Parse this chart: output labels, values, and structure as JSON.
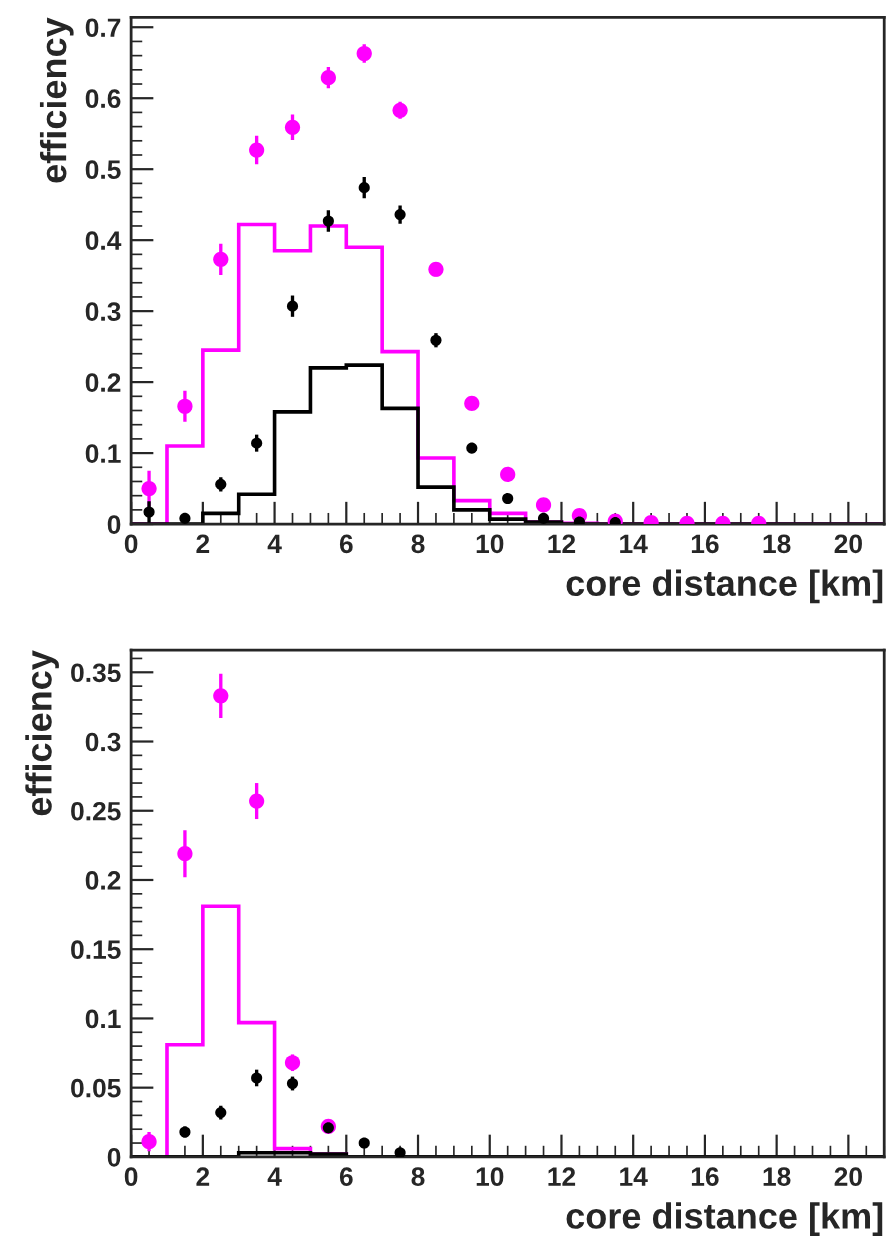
{
  "chart_data": [
    {
      "type": "histogram",
      "xlabel": "core distance [km]",
      "ylabel": "efficiency",
      "xlim": [
        0,
        21
      ],
      "ylim": [
        0,
        0.714
      ],
      "xticks": [
        0,
        2,
        4,
        6,
        8,
        10,
        12,
        14,
        16,
        18,
        20
      ],
      "yticks": [
        0,
        0.1,
        0.2,
        0.3,
        0.4,
        0.5,
        0.6,
        0.7
      ],
      "grid": false,
      "legend": false,
      "marker": "circle",
      "series": [
        {
          "color": "#ff00ff",
          "bins": [
            0,
            1,
            2,
            3,
            4,
            5,
            6,
            7,
            8,
            9,
            10,
            11,
            12,
            13,
            14,
            15,
            16,
            17,
            18,
            19,
            20,
            21
          ],
          "values": [
            0,
            0.11,
            0.245,
            0.422,
            0.385,
            0.42,
            0.39,
            0.243,
            0.093,
            0.033,
            0.015,
            0.003,
            0.001,
            0,
            0,
            0,
            0,
            0,
            0,
            0,
            0
          ]
        },
        {
          "color": "#000000",
          "bins": [
            0,
            1,
            2,
            3,
            4,
            5,
            6,
            7,
            8,
            9,
            10,
            11,
            12,
            13,
            14,
            15,
            16,
            17,
            18,
            19,
            20,
            21
          ],
          "values": [
            0,
            0,
            0.015,
            0.042,
            0.158,
            0.22,
            0.224,
            0.163,
            0.052,
            0.02,
            0.007,
            0.003,
            0,
            0,
            0,
            0,
            0,
            0,
            0,
            0,
            0
          ]
        },
        {
          "type": "scatter",
          "color": "#ff00ff",
          "x": [
            0.5,
            1.5,
            2.5,
            3.5,
            4.5,
            5.5,
            6.5,
            7.5,
            8.5,
            9.5,
            10.5,
            11.5,
            12.5,
            13.5,
            14.5,
            15.5,
            16.5,
            17.5
          ],
          "values": [
            0.05,
            0.166,
            0.373,
            0.527,
            0.559,
            0.629,
            0.663,
            0.583,
            0.359,
            0.17,
            0.07,
            0.027,
            0.012,
            0.004,
            0.002,
            0.001,
            0.001,
            0.001
          ],
          "errors": [
            0.025,
            0.022,
            0.022,
            0.02,
            0.018,
            0.015,
            0.013,
            0.012,
            0.01,
            0.008,
            0.005,
            null,
            null,
            null,
            null,
            null,
            null,
            null
          ]
        },
        {
          "type": "scatter",
          "color": "#000000",
          "x": [
            0.5,
            1.5,
            2.5,
            3.5,
            4.5,
            5.5,
            6.5,
            7.5,
            8.5,
            9.5,
            10.5,
            11.5,
            12.5,
            13.5
          ],
          "values": [
            0.017,
            0.008,
            0.056,
            0.114,
            0.307,
            0.427,
            0.474,
            0.436,
            0.259,
            0.107,
            0.036,
            0.008,
            0.003,
            0.002
          ],
          "errors": [
            0.015,
            0.005,
            0.01,
            0.012,
            0.015,
            0.015,
            0.015,
            0.013,
            0.01,
            0.007,
            0.004,
            null,
            null,
            null
          ]
        }
      ]
    },
    {
      "type": "histogram",
      "xlabel": "core distance [km]",
      "ylabel": "efficiency",
      "xlim": [
        0,
        21
      ],
      "ylim": [
        0,
        0.366
      ],
      "xticks": [
        0,
        2,
        4,
        6,
        8,
        10,
        12,
        14,
        16,
        18,
        20
      ],
      "yticks": [
        0,
        0.05,
        0.1,
        0.15,
        0.2,
        0.25,
        0.3,
        0.35
      ],
      "grid": false,
      "legend": false,
      "marker": "circle",
      "series": [
        {
          "color": "#ff00ff",
          "bins": [
            0,
            1,
            2,
            3,
            4,
            5,
            6,
            7,
            8,
            9,
            10,
            11,
            12,
            13,
            14,
            15,
            16,
            17,
            18,
            19,
            20,
            21
          ],
          "values": [
            0,
            0.081,
            0.181,
            0.097,
            0.006,
            0.002,
            0,
            0,
            0,
            0,
            0,
            0,
            0,
            0,
            0,
            0,
            0,
            0,
            0,
            0,
            0
          ]
        },
        {
          "color": "#000000",
          "bins": [
            0,
            1,
            2,
            3,
            4,
            5,
            6,
            7,
            8,
            9,
            10,
            11,
            12,
            13,
            14,
            15,
            16,
            17,
            18,
            19,
            20,
            21
          ],
          "values": [
            0,
            0,
            0,
            0.003,
            0.003,
            0.002,
            0,
            0,
            0,
            0,
            0,
            0,
            0,
            0,
            0,
            0,
            0,
            0,
            0,
            0,
            0
          ]
        },
        {
          "type": "scatter",
          "color": "#ff00ff",
          "x": [
            0.5,
            1.5,
            2.5,
            3.5,
            4.5,
            5.5
          ],
          "values": [
            0.011,
            0.219,
            0.333,
            0.257,
            0.068,
            0.022
          ],
          "errors": [
            0.007,
            0.017,
            0.016,
            0.013,
            0.006,
            0.003
          ]
        },
        {
          "type": "scatter",
          "color": "#000000",
          "x": [
            1.5,
            2.5,
            3.5,
            4.5,
            5.5,
            6.5,
            7.5
          ],
          "values": [
            0.018,
            0.032,
            0.057,
            0.053,
            0.021,
            0.01,
            0.003
          ],
          "errors": [
            0.004,
            0.005,
            0.006,
            0.005,
            0.003,
            0.002,
            0.001
          ]
        }
      ]
    }
  ]
}
